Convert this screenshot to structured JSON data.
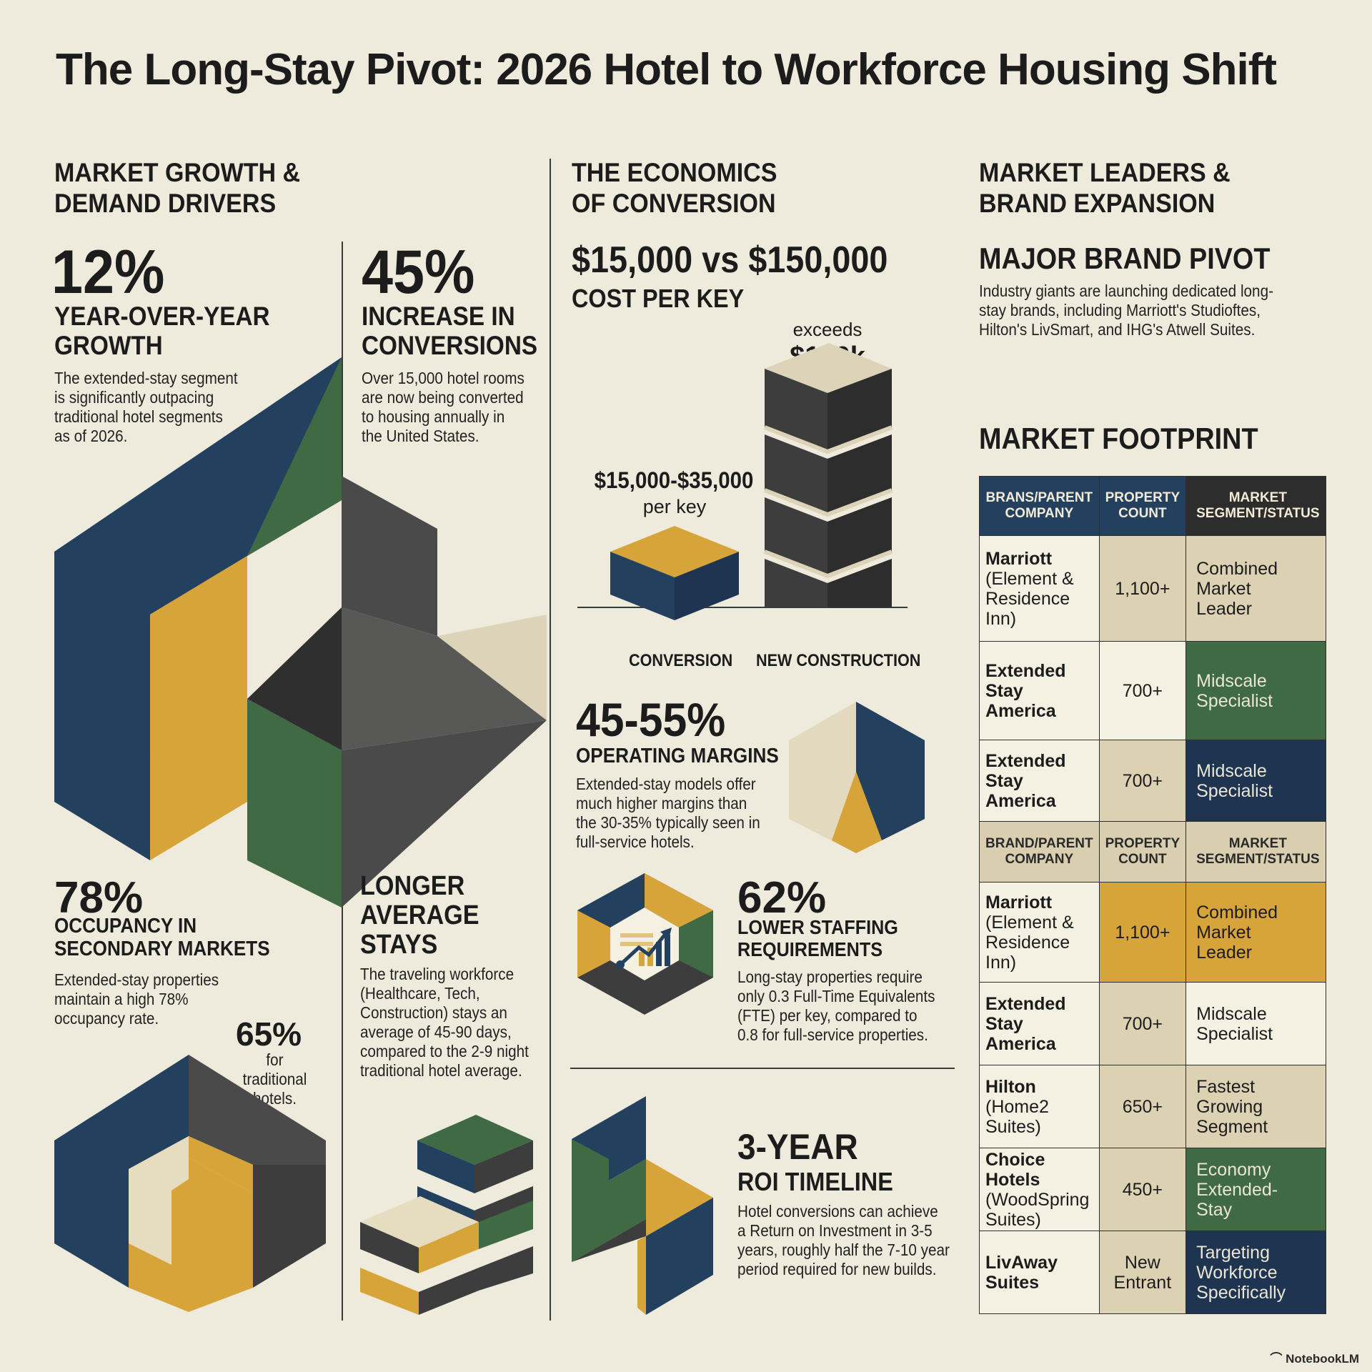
{
  "title": "The Long-Stay Pivot: 2026 Hotel to Workforce Housing Shift",
  "section_market_growth": {
    "heading_line1": "MARKET GROWTH &",
    "heading_line2": "DEMAND DRIVERS",
    "stat1": {
      "value": "12%",
      "label_line1": "YEAR-OVER-YEAR",
      "label_line2": "GROWTH",
      "body": [
        "The extended-stay segment",
        "is significantly outpacing",
        "traditional hotel segments",
        "as of 2026."
      ]
    },
    "stat2": {
      "value": "45%",
      "label_line1": "INCREASE IN",
      "label_line2": "CONVERSIONS",
      "body": [
        "Over 15,000 hotel rooms",
        "are now being converted",
        "to housing annually in",
        "the United States."
      ]
    },
    "stat3": {
      "value": "78%",
      "label_line1": "OCCUPANCY IN",
      "label_line2": "SECONDARY MARKETS",
      "body": [
        "Extended-stay properties",
        "maintain a high 78%",
        "occupancy rate."
      ],
      "compare_value": "65%",
      "compare_line1": "for traditional",
      "compare_line2": "hotels."
    },
    "stat4": {
      "label_line1": "LONGER",
      "label_line2": "AVERAGE",
      "label_line3": "STAYS",
      "body": [
        "The traveling workforce",
        "(Healthcare, Tech,",
        "Construction) stays an",
        "average of 45-90 days,",
        "compared to the 2-9 night",
        "traditional hotel average."
      ]
    }
  },
  "section_economics": {
    "heading_line1": "THE ECONOMICS",
    "heading_line2": "OF CONVERSION",
    "cost_headline": "$15,000 vs $150,000",
    "cost_sub": "COST PER KEY",
    "conversion_value": "$15,000-$35,000",
    "conversion_unit": "per key",
    "new_build_prefix": "exceeds",
    "new_build_value": "$150k",
    "conversion_label": "CONVERSION",
    "new_build_label": "NEW CONSTRUCTION",
    "margins": {
      "value": "45-55%",
      "label": "OPERATING MARGINS",
      "body": [
        "Extended-stay models offer",
        "much higher margins than",
        "the 30-35% typically seen in",
        "full-service hotels."
      ]
    },
    "staffing": {
      "value": "62%",
      "label_line1": "LOWER STAFFING",
      "label_line2": "REQUIREMENTS",
      "body": [
        "Long-stay properties require",
        "only 0.3 Full-Time Equivalents",
        "(FTE) per key, compared to",
        "0.8 for full-service properties."
      ]
    },
    "roi": {
      "value": "3-YEAR",
      "label": "ROI TIMELINE",
      "body": [
        "Hotel conversions can achieve",
        "a Return on Investment in 3-5",
        "years, roughly half the 7-10 year",
        "period required for new builds."
      ]
    }
  },
  "section_leaders": {
    "heading_line1": "MARKET LEADERS &",
    "heading_line2": "BRAND EXPANSION",
    "pivot_title": "MAJOR BRAND PIVOT",
    "pivot_body": [
      "Industry giants are launching dedicated long-",
      "stay brands, including Marriott's Studioftes,",
      "Hilton's LivSmart, and IHG's Atwell Suites."
    ],
    "footprint_title": "MARKET FOOTPRINT",
    "header1": {
      "c1": [
        "BRANS/PARENT",
        "COMPANY"
      ],
      "c2": [
        "PROPERTY",
        "COUNT"
      ],
      "c3": [
        "MARKET",
        "SEGMENT/STATUS"
      ]
    },
    "header2": {
      "c1": [
        "BRAND/PARENT",
        "COMPANY"
      ],
      "c2": [
        "PROPERTY",
        "COUNT"
      ],
      "c3": [
        "MARKET",
        "SEGMENT/STATUS"
      ]
    },
    "rows_a": [
      {
        "brand": "Marriott",
        "brand_sub": [
          "(Element &",
          "Residence Inn)"
        ],
        "count": "1,100+",
        "status": [
          "Combined",
          "Market",
          "Leader"
        ]
      },
      {
        "brand": "Extended",
        "brand_sub_bold": "Stay America",
        "count": "700+",
        "status": [
          "Midscale",
          "Specialist"
        ]
      },
      {
        "brand": "Extended Stay",
        "brand_sub_bold": "America",
        "count": "700+",
        "status": [
          "Midscale",
          "Specialist"
        ]
      }
    ],
    "rows_b": [
      {
        "brand": "Marriott",
        "brand_sub": [
          "(Element &",
          "Residence Inn)"
        ],
        "count": "1,100+",
        "status": [
          "Combined",
          "Market",
          "Leader"
        ]
      },
      {
        "brand_lines": [
          "Extended",
          "Stay",
          "America"
        ],
        "count": "700+",
        "status": [
          "Midscale",
          "Specialist"
        ]
      },
      {
        "brand": "Hilton",
        "brand_sub": [
          "(Home2",
          "Suites)"
        ],
        "count": "650+",
        "status": [
          "Fastest",
          "Growing",
          "Segment"
        ]
      },
      {
        "brand": "Choice Hotels",
        "brand_sub": [
          "(WoodSpring",
          "Suites)"
        ],
        "count": "450+",
        "status": [
          "Economy",
          "Extended-",
          "Stay"
        ]
      },
      {
        "brand_lines": [
          "LivAway",
          "Suites"
        ],
        "count_lines": [
          "New",
          "Entrant"
        ],
        "status": [
          "Targeting",
          "Workforce",
          "Specifically"
        ]
      }
    ]
  },
  "watermark": "NotebookLM",
  "colors": {
    "navy": "#24405f",
    "gold": "#d7a43a",
    "green": "#3f6a44",
    "charcoal": "#3d3d3d",
    "cream": "#efebdc"
  }
}
